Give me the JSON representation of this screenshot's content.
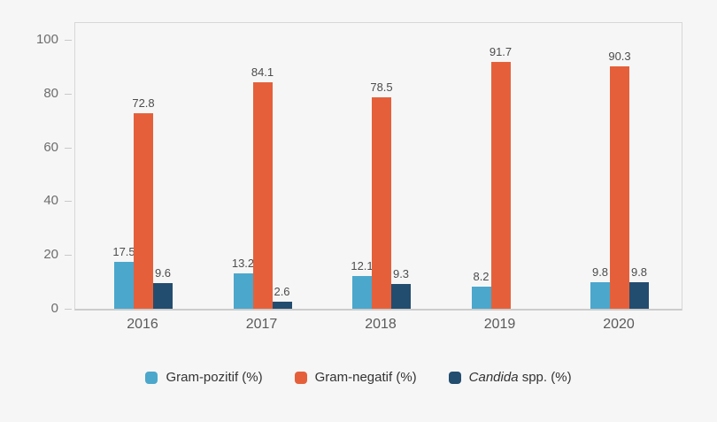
{
  "chart_data": {
    "type": "bar",
    "categories": [
      "2016",
      "2017",
      "2018",
      "2019",
      "2020"
    ],
    "series": [
      {
        "name": "Gram-pozitif (%)",
        "color": "#4ba7cc",
        "values": [
          17.5,
          13.2,
          12.1,
          8.2,
          9.8
        ]
      },
      {
        "name": "Gram-negatif (%)",
        "color": "#e5603a",
        "values": [
          72.8,
          84.1,
          78.5,
          91.7,
          90.3
        ]
      },
      {
        "name": "Candida spp. (%)",
        "color": "#234d6f",
        "values": [
          9.6,
          2.6,
          9.3,
          null,
          9.8
        ]
      }
    ],
    "value_labels": [
      [
        "17.5",
        "13.2",
        "12.1",
        "8.2",
        "9.8"
      ],
      [
        "72.8",
        "84.1",
        "78.5",
        "91.7",
        "90.3"
      ],
      [
        "9.6",
        "2.6",
        "9.3",
        null,
        "9.8"
      ]
    ],
    "ylim": [
      0,
      100
    ],
    "yticks": [
      "0",
      "20",
      "40",
      "60",
      "80",
      "100"
    ],
    "grid": false,
    "legend_position": "bottom"
  },
  "legend": {
    "items": [
      {
        "label": "Gram-pozitif (%)",
        "color": "#4ba7cc"
      },
      {
        "label": "Gram-negatif (%)",
        "color": "#e5603a"
      },
      {
        "label_italic": "Candida",
        "label_rest": " spp. (%)",
        "color": "#234d6f"
      }
    ]
  },
  "colors": {
    "background": "#f6f6f6",
    "plot_border": "#d7d7d7",
    "axis_bottom": "#cccccc"
  }
}
